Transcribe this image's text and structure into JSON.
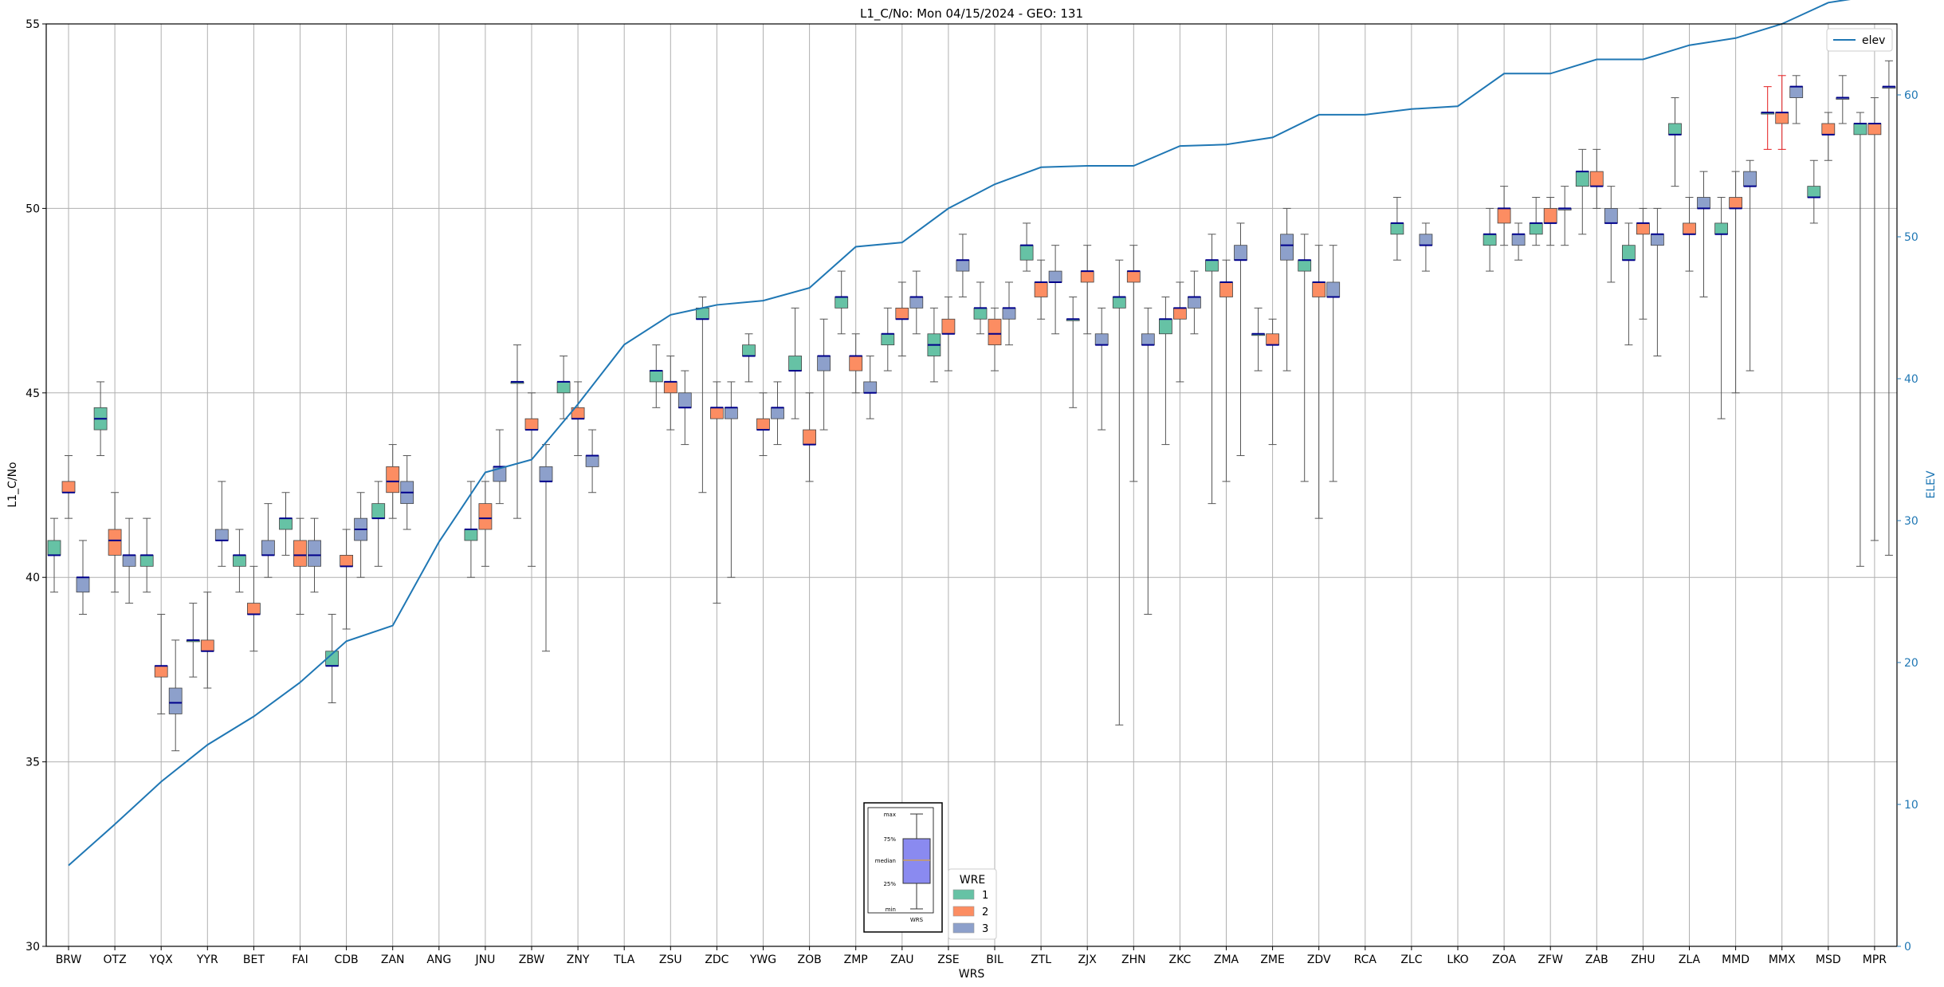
{
  "chart_data": {
    "type": "box",
    "title": "L1_C/No: Mon 04/15/2024 - GEO: 131",
    "xlabel": "WRS",
    "ylabel": "L1_C/No",
    "y2label": "ELEV",
    "ylim": [
      30,
      55
    ],
    "y2lim": [
      0,
      65
    ],
    "yticks": [
      "30",
      "35",
      "40",
      "45",
      "50",
      "55"
    ],
    "y2ticks": [
      "0",
      "10",
      "20",
      "30",
      "40",
      "50",
      "60"
    ],
    "grid": true,
    "categories": [
      "BRW",
      "OTZ",
      "YQX",
      "YYR",
      "BET",
      "FAI",
      "CDB",
      "ZAN",
      "ANG",
      "JNU",
      "ZBW",
      "ZNY",
      "TLA",
      "ZSU",
      "ZDC",
      "YWG",
      "ZOB",
      "ZMP",
      "ZAU",
      "ZSE",
      "BIL",
      "ZTL",
      "ZJX",
      "ZHN",
      "ZKC",
      "ZMA",
      "ZME",
      "ZDV",
      "RCA",
      "ZLC",
      "LKO",
      "ZOA",
      "ZFW",
      "ZAB",
      "ZHU",
      "ZLA",
      "MMD",
      "MMX",
      "MSD",
      "MPR"
    ],
    "colors": {
      "1": "#66c2a5",
      "2": "#fc8d62",
      "3": "#8da0cb",
      "elev": "#1f77b4",
      "median": "#00008b",
      "whisker": "#555555",
      "whisker_alt": "#e41a1c"
    },
    "legend": {
      "title": "WRE",
      "entries": [
        "1",
        "2",
        "3"
      ],
      "position": "bottom-center"
    },
    "line_legend": {
      "label": "elev",
      "position": "top-right"
    },
    "inset_legend": {
      "labels": [
        "max",
        "75%",
        "median",
        "25%",
        "min"
      ],
      "xlabel": "WRS"
    },
    "elev": [
      5.7,
      8.6,
      11.6,
      14.2,
      16.2,
      18.6,
      21.5,
      22.6,
      28.5,
      33.4,
      34.3,
      38.2,
      42.4,
      44.5,
      45.2,
      45.5,
      46.4,
      49.3,
      49.6,
      52.0,
      53.7,
      54.9,
      55.0,
      55.0,
      56.4,
      56.5,
      57.0,
      58.6,
      58.6,
      59.0,
      59.2,
      61.5,
      61.5,
      62.5,
      62.5,
      63.5,
      64.0,
      65.0,
      66.5,
      67.0
    ],
    "boxes": [
      {
        "station": "BRW",
        "wre": 1,
        "min": 39.6,
        "q1": 40.6,
        "median": 40.6,
        "q3": 41.0,
        "max": 41.6
      },
      {
        "station": "BRW",
        "wre": 2,
        "min": 41.6,
        "q1": 42.3,
        "median": 42.3,
        "q3": 42.6,
        "max": 43.3
      },
      {
        "station": "BRW",
        "wre": 3,
        "min": 39.0,
        "q1": 39.6,
        "median": 40.0,
        "q3": 40.0,
        "max": 41.0
      },
      {
        "station": "OTZ",
        "wre": 1,
        "min": 43.3,
        "q1": 44.0,
        "median": 44.3,
        "q3": 44.6,
        "max": 45.3
      },
      {
        "station": "OTZ",
        "wre": 2,
        "min": 39.6,
        "q1": 40.6,
        "median": 41.0,
        "q3": 41.3,
        "max": 42.3
      },
      {
        "station": "OTZ",
        "wre": 3,
        "min": 39.3,
        "q1": 40.3,
        "median": 40.6,
        "q3": 40.6,
        "max": 41.6
      },
      {
        "station": "YQX",
        "wre": 1,
        "min": 39.6,
        "q1": 40.3,
        "median": 40.6,
        "q3": 40.6,
        "max": 41.6
      },
      {
        "station": "YQX",
        "wre": 2,
        "min": 36.3,
        "q1": 37.3,
        "median": 37.6,
        "q3": 37.6,
        "max": 39.0
      },
      {
        "station": "YQX",
        "wre": 3,
        "min": 35.3,
        "q1": 36.3,
        "median": 36.6,
        "q3": 37.0,
        "max": 38.3
      },
      {
        "station": "YYR",
        "wre": 1,
        "min": 37.3,
        "q1": 38.3,
        "median": 38.3,
        "q3": 38.3,
        "max": 39.3
      },
      {
        "station": "YYR",
        "wre": 2,
        "min": 37.0,
        "q1": 38.0,
        "median": 38.0,
        "q3": 38.3,
        "max": 39.6
      },
      {
        "station": "YYR",
        "wre": 3,
        "min": 40.3,
        "q1": 41.0,
        "median": 41.0,
        "q3": 41.3,
        "max": 42.6
      },
      {
        "station": "BET",
        "wre": 1,
        "min": 39.6,
        "q1": 40.3,
        "median": 40.6,
        "q3": 40.6,
        "max": 41.3
      },
      {
        "station": "BET",
        "wre": 2,
        "min": 38.0,
        "q1": 39.0,
        "median": 39.0,
        "q3": 39.3,
        "max": 40.3
      },
      {
        "station": "BET",
        "wre": 3,
        "min": 40.0,
        "q1": 40.6,
        "median": 40.6,
        "q3": 41.0,
        "max": 42.0
      },
      {
        "station": "FAI",
        "wre": 1,
        "min": 40.6,
        "q1": 41.3,
        "median": 41.6,
        "q3": 41.6,
        "max": 42.3
      },
      {
        "station": "FAI",
        "wre": 2,
        "min": 39.0,
        "q1": 40.3,
        "median": 40.6,
        "q3": 41.0,
        "max": 41.6
      },
      {
        "station": "FAI",
        "wre": 3,
        "min": 39.6,
        "q1": 40.3,
        "median": 40.6,
        "q3": 41.0,
        "max": 41.6
      },
      {
        "station": "CDB",
        "wre": 1,
        "min": 36.6,
        "q1": 37.6,
        "median": 37.6,
        "q3": 38.0,
        "max": 39.0
      },
      {
        "station": "CDB",
        "wre": 2,
        "min": 38.6,
        "q1": 40.3,
        "median": 40.3,
        "q3": 40.6,
        "max": 41.3
      },
      {
        "station": "CDB",
        "wre": 3,
        "min": 40.0,
        "q1": 41.0,
        "median": 41.3,
        "q3": 41.6,
        "max": 42.3
      },
      {
        "station": "ZAN",
        "wre": 1,
        "min": 40.3,
        "q1": 41.6,
        "median": 41.6,
        "q3": 42.0,
        "max": 42.6
      },
      {
        "station": "ZAN",
        "wre": 2,
        "min": 41.6,
        "q1": 42.3,
        "median": 42.6,
        "q3": 43.0,
        "max": 43.6
      },
      {
        "station": "ZAN",
        "wre": 3,
        "min": 41.3,
        "q1": 42.0,
        "median": 42.3,
        "q3": 42.6,
        "max": 43.3
      },
      {
        "station": "JNU",
        "wre": 1,
        "min": 40.0,
        "q1": 41.0,
        "median": 41.3,
        "q3": 41.3,
        "max": 42.6
      },
      {
        "station": "JNU",
        "wre": 2,
        "min": 40.3,
        "q1": 41.3,
        "median": 41.6,
        "q3": 42.0,
        "max": 42.6
      },
      {
        "station": "JNU",
        "wre": 3,
        "min": 42.0,
        "q1": 42.6,
        "median": 43.0,
        "q3": 43.0,
        "max": 44.0
      },
      {
        "station": "ZBW",
        "wre": 1,
        "min": 41.6,
        "q1": 45.3,
        "median": 45.3,
        "q3": 45.3,
        "max": 46.3
      },
      {
        "station": "ZBW",
        "wre": 2,
        "min": 40.3,
        "q1": 44.0,
        "median": 44.0,
        "q3": 44.3,
        "max": 45.0
      },
      {
        "station": "ZBW",
        "wre": 3,
        "min": 38.0,
        "q1": 42.6,
        "median": 42.6,
        "q3": 43.0,
        "max": 43.6
      },
      {
        "station": "ZNY",
        "wre": 1,
        "min": 44.3,
        "q1": 45.0,
        "median": 45.3,
        "q3": 45.3,
        "max": 46.0
      },
      {
        "station": "ZNY",
        "wre": 2,
        "min": 43.3,
        "q1": 44.3,
        "median": 44.3,
        "q3": 44.6,
        "max": 45.3
      },
      {
        "station": "ZNY",
        "wre": 3,
        "min": 42.3,
        "q1": 43.0,
        "median": 43.3,
        "q3": 43.3,
        "max": 44.0
      },
      {
        "station": "ZSU",
        "wre": 1,
        "min": 44.6,
        "q1": 45.3,
        "median": 45.6,
        "q3": 45.6,
        "max": 46.3
      },
      {
        "station": "ZSU",
        "wre": 2,
        "min": 44.0,
        "q1": 45.0,
        "median": 45.3,
        "q3": 45.3,
        "max": 46.0
      },
      {
        "station": "ZSU",
        "wre": 3,
        "min": 43.6,
        "q1": 44.6,
        "median": 44.6,
        "q3": 45.0,
        "max": 45.6
      },
      {
        "station": "ZDC",
        "wre": 1,
        "min": 42.3,
        "q1": 47.0,
        "median": 47.0,
        "q3": 47.3,
        "max": 47.6
      },
      {
        "station": "ZDC",
        "wre": 2,
        "min": 39.3,
        "q1": 44.3,
        "median": 44.6,
        "q3": 44.6,
        "max": 45.3
      },
      {
        "station": "ZDC",
        "wre": 3,
        "min": 40.0,
        "q1": 44.3,
        "median": 44.6,
        "q3": 44.6,
        "max": 45.3
      },
      {
        "station": "YWG",
        "wre": 1,
        "min": 45.3,
        "q1": 46.0,
        "median": 46.0,
        "q3": 46.3,
        "max": 46.6
      },
      {
        "station": "YWG",
        "wre": 2,
        "min": 43.3,
        "q1": 44.0,
        "median": 44.0,
        "q3": 44.3,
        "max": 45.0
      },
      {
        "station": "YWG",
        "wre": 3,
        "min": 43.6,
        "q1": 44.3,
        "median": 44.6,
        "q3": 44.6,
        "max": 45.3
      },
      {
        "station": "ZOB",
        "wre": 1,
        "min": 44.3,
        "q1": 45.6,
        "median": 45.6,
        "q3": 46.0,
        "max": 47.3
      },
      {
        "station": "ZOB",
        "wre": 2,
        "min": 42.6,
        "q1": 43.6,
        "median": 43.6,
        "q3": 44.0,
        "max": 45.0
      },
      {
        "station": "ZOB",
        "wre": 3,
        "min": 44.0,
        "q1": 45.6,
        "median": 46.0,
        "q3": 46.0,
        "max": 47.0
      },
      {
        "station": "ZMP",
        "wre": 1,
        "min": 46.6,
        "q1": 47.3,
        "median": 47.6,
        "q3": 47.6,
        "max": 48.3
      },
      {
        "station": "ZMP",
        "wre": 2,
        "min": 45.0,
        "q1": 45.6,
        "median": 46.0,
        "q3": 46.0,
        "max": 46.6
      },
      {
        "station": "ZMP",
        "wre": 3,
        "min": 44.3,
        "q1": 45.0,
        "median": 45.0,
        "q3": 45.3,
        "max": 46.0
      },
      {
        "station": "ZAU",
        "wre": 1,
        "min": 45.6,
        "q1": 46.3,
        "median": 46.6,
        "q3": 46.6,
        "max": 47.3
      },
      {
        "station": "ZAU",
        "wre": 2,
        "min": 46.0,
        "q1": 47.0,
        "median": 47.0,
        "q3": 47.3,
        "max": 48.0
      },
      {
        "station": "ZAU",
        "wre": 3,
        "min": 46.6,
        "q1": 47.3,
        "median": 47.6,
        "q3": 47.6,
        "max": 48.3
      },
      {
        "station": "ZSE",
        "wre": 1,
        "min": 45.3,
        "q1": 46.0,
        "median": 46.3,
        "q3": 46.6,
        "max": 47.3
      },
      {
        "station": "ZSE",
        "wre": 2,
        "min": 45.6,
        "q1": 46.6,
        "median": 46.6,
        "q3": 47.0,
        "max": 47.6
      },
      {
        "station": "ZSE",
        "wre": 3,
        "min": 47.6,
        "q1": 48.3,
        "median": 48.6,
        "q3": 48.6,
        "max": 49.3
      },
      {
        "station": "BIL",
        "wre": 1,
        "min": 46.6,
        "q1": 47.0,
        "median": 47.3,
        "q3": 47.3,
        "max": 48.0
      },
      {
        "station": "BIL",
        "wre": 2,
        "min": 45.6,
        "q1": 46.3,
        "median": 46.6,
        "q3": 47.0,
        "max": 47.3
      },
      {
        "station": "BIL",
        "wre": 3,
        "min": 46.3,
        "q1": 47.0,
        "median": 47.3,
        "q3": 47.3,
        "max": 48.0
      },
      {
        "station": "ZTL",
        "wre": 1,
        "min": 48.3,
        "q1": 48.6,
        "median": 49.0,
        "q3": 49.0,
        "max": 49.6
      },
      {
        "station": "ZTL",
        "wre": 2,
        "min": 47.0,
        "q1": 47.6,
        "median": 48.0,
        "q3": 48.0,
        "max": 48.6
      },
      {
        "station": "ZTL",
        "wre": 3,
        "min": 46.6,
        "q1": 48.0,
        "median": 48.0,
        "q3": 48.3,
        "max": 49.0
      },
      {
        "station": "ZJX",
        "wre": 1,
        "min": 44.6,
        "q1": 47.0,
        "median": 47.0,
        "q3": 47.0,
        "max": 47.6
      },
      {
        "station": "ZJX",
        "wre": 2,
        "min": 46.6,
        "q1": 48.0,
        "median": 48.3,
        "q3": 48.3,
        "max": 49.0
      },
      {
        "station": "ZJX",
        "wre": 3,
        "min": 44.0,
        "q1": 46.3,
        "median": 46.3,
        "q3": 46.6,
        "max": 47.3
      },
      {
        "station": "ZHN",
        "wre": 1,
        "min": 36.0,
        "q1": 47.3,
        "median": 47.6,
        "q3": 47.6,
        "max": 48.6
      },
      {
        "station": "ZHN",
        "wre": 2,
        "min": 42.6,
        "q1": 48.0,
        "median": 48.3,
        "q3": 48.3,
        "max": 49.0
      },
      {
        "station": "ZHN",
        "wre": 3,
        "min": 39.0,
        "q1": 46.3,
        "median": 46.3,
        "q3": 46.6,
        "max": 47.3
      },
      {
        "station": "ZKC",
        "wre": 1,
        "min": 43.6,
        "q1": 46.6,
        "median": 47.0,
        "q3": 47.0,
        "max": 47.6
      },
      {
        "station": "ZKC",
        "wre": 2,
        "min": 45.3,
        "q1": 47.0,
        "median": 47.3,
        "q3": 47.3,
        "max": 48.0
      },
      {
        "station": "ZKC",
        "wre": 3,
        "min": 46.6,
        "q1": 47.3,
        "median": 47.6,
        "q3": 47.6,
        "max": 48.3
      },
      {
        "station": "ZMA",
        "wre": 1,
        "min": 42.0,
        "q1": 48.3,
        "median": 48.6,
        "q3": 48.6,
        "max": 49.3
      },
      {
        "station": "ZMA",
        "wre": 2,
        "min": 42.6,
        "q1": 47.6,
        "median": 48.0,
        "q3": 48.0,
        "max": 48.6
      },
      {
        "station": "ZMA",
        "wre": 3,
        "min": 43.3,
        "q1": 48.6,
        "median": 48.6,
        "q3": 49.0,
        "max": 49.6
      },
      {
        "station": "ZME",
        "wre": 1,
        "min": 45.6,
        "q1": 46.6,
        "median": 46.6,
        "q3": 46.6,
        "max": 47.3
      },
      {
        "station": "ZME",
        "wre": 2,
        "min": 43.6,
        "q1": 46.3,
        "median": 46.3,
        "q3": 46.6,
        "max": 47.0
      },
      {
        "station": "ZME",
        "wre": 3,
        "min": 45.6,
        "q1": 48.6,
        "median": 49.0,
        "q3": 49.3,
        "max": 50.0
      },
      {
        "station": "ZDV",
        "wre": 1,
        "min": 42.6,
        "q1": 48.3,
        "median": 48.6,
        "q3": 48.6,
        "max": 49.3
      },
      {
        "station": "ZDV",
        "wre": 2,
        "min": 41.6,
        "q1": 47.6,
        "median": 48.0,
        "q3": 48.0,
        "max": 49.0
      },
      {
        "station": "ZDV",
        "wre": 3,
        "min": 42.6,
        "q1": 47.6,
        "median": 47.6,
        "q3": 48.0,
        "max": 49.0
      },
      {
        "station": "ZLC",
        "wre": 1,
        "min": 48.6,
        "q1": 49.3,
        "median": 49.6,
        "q3": 49.6,
        "max": 50.3
      },
      {
        "station": "ZLC",
        "wre": 3,
        "min": 48.3,
        "q1": 49.0,
        "median": 49.0,
        "q3": 49.3,
        "max": 49.6
      },
      {
        "station": "ZOA",
        "wre": 1,
        "min": 48.3,
        "q1": 49.0,
        "median": 49.3,
        "q3": 49.3,
        "max": 50.0
      },
      {
        "station": "ZOA",
        "wre": 2,
        "min": 49.0,
        "q1": 49.6,
        "median": 50.0,
        "q3": 50.0,
        "max": 50.6
      },
      {
        "station": "ZOA",
        "wre": 3,
        "min": 48.6,
        "q1": 49.0,
        "median": 49.3,
        "q3": 49.3,
        "max": 49.6
      },
      {
        "station": "ZFW",
        "wre": 1,
        "min": 49.0,
        "q1": 49.3,
        "median": 49.6,
        "q3": 49.6,
        "max": 50.3
      },
      {
        "station": "ZFW",
        "wre": 2,
        "min": 49.0,
        "q1": 49.6,
        "median": 49.6,
        "q3": 50.0,
        "max": 50.3
      },
      {
        "station": "ZFW",
        "wre": 3,
        "min": 49.0,
        "q1": 50.0,
        "median": 50.0,
        "q3": 50.0,
        "max": 50.6
      },
      {
        "station": "ZAB",
        "wre": 1,
        "min": 49.3,
        "q1": 50.6,
        "median": 51.0,
        "q3": 51.0,
        "max": 51.6
      },
      {
        "station": "ZAB",
        "wre": 2,
        "min": 50.0,
        "q1": 50.6,
        "median": 50.6,
        "q3": 51.0,
        "max": 51.6
      },
      {
        "station": "ZAB",
        "wre": 3,
        "min": 48.0,
        "q1": 49.6,
        "median": 49.6,
        "q3": 50.0,
        "max": 50.6
      },
      {
        "station": "ZHU",
        "wre": 1,
        "min": 46.3,
        "q1": 48.6,
        "median": 48.6,
        "q3": 49.0,
        "max": 49.6
      },
      {
        "station": "ZHU",
        "wre": 2,
        "min": 47.0,
        "q1": 49.3,
        "median": 49.6,
        "q3": 49.6,
        "max": 50.0
      },
      {
        "station": "ZHU",
        "wre": 3,
        "min": 46.0,
        "q1": 49.0,
        "median": 49.3,
        "q3": 49.3,
        "max": 50.0
      },
      {
        "station": "ZLA",
        "wre": 1,
        "min": 50.6,
        "q1": 52.0,
        "median": 52.0,
        "q3": 52.3,
        "max": 53.0
      },
      {
        "station": "ZLA",
        "wre": 2,
        "min": 48.3,
        "q1": 49.3,
        "median": 49.3,
        "q3": 49.6,
        "max": 50.3
      },
      {
        "station": "ZLA",
        "wre": 3,
        "min": 47.6,
        "q1": 50.0,
        "median": 50.0,
        "q3": 50.3,
        "max": 51.0
      },
      {
        "station": "MMD",
        "wre": 1,
        "min": 44.3,
        "q1": 49.3,
        "median": 49.3,
        "q3": 49.6,
        "max": 50.3
      },
      {
        "station": "MMD",
        "wre": 2,
        "min": 45.0,
        "q1": 50.0,
        "median": 50.0,
        "q3": 50.3,
        "max": 51.0
      },
      {
        "station": "MMD",
        "wre": 3,
        "min": 45.6,
        "q1": 50.6,
        "median": 50.6,
        "q3": 51.0,
        "max": 51.3
      },
      {
        "station": "MMX",
        "wre": 1,
        "min": 51.6,
        "q1": 52.6,
        "median": 52.6,
        "q3": 52.6,
        "max": 53.3,
        "alt": true
      },
      {
        "station": "MMX",
        "wre": 2,
        "min": 51.6,
        "q1": 52.3,
        "median": 52.6,
        "q3": 52.6,
        "max": 53.6,
        "alt": true
      },
      {
        "station": "MMX",
        "wre": 3,
        "min": 52.3,
        "q1": 53.0,
        "median": 53.3,
        "q3": 53.3,
        "max": 53.6
      },
      {
        "station": "MSD",
        "wre": 1,
        "min": 49.6,
        "q1": 50.3,
        "median": 50.3,
        "q3": 50.6,
        "max": 51.3
      },
      {
        "station": "MSD",
        "wre": 2,
        "min": 51.3,
        "q1": 52.0,
        "median": 52.0,
        "q3": 52.3,
        "max": 52.6
      },
      {
        "station": "MSD",
        "wre": 3,
        "min": 52.3,
        "q1": 53.0,
        "median": 53.0,
        "q3": 53.0,
        "max": 53.6
      },
      {
        "station": "MPR",
        "wre": 1,
        "min": 40.3,
        "q1": 52.0,
        "median": 52.3,
        "q3": 52.3,
        "max": 52.6
      },
      {
        "station": "MPR",
        "wre": 2,
        "min": 41.0,
        "q1": 52.0,
        "median": 52.3,
        "q3": 52.3,
        "max": 53.0
      },
      {
        "station": "MPR",
        "wre": 3,
        "min": 40.6,
        "q1": 53.3,
        "median": 53.3,
        "q3": 53.3,
        "max": 54.0
      }
    ]
  }
}
